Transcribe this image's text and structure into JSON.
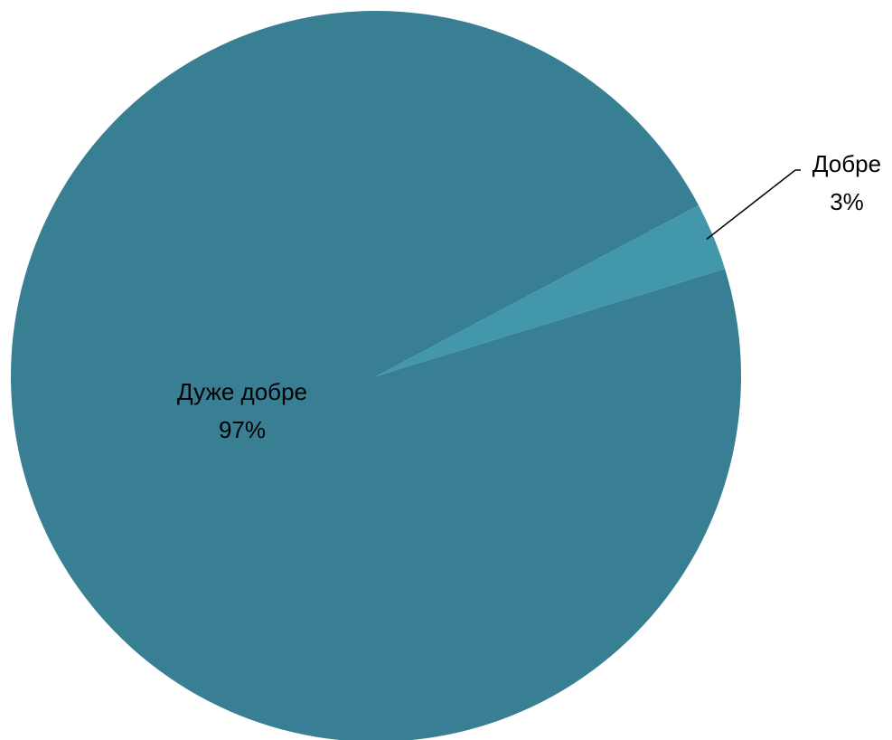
{
  "chart_data": {
    "type": "pie",
    "categories": [
      "Дуже добре",
      "Добре"
    ],
    "values": [
      97,
      3
    ],
    "value_labels": [
      "97%",
      "3%"
    ],
    "colors": [
      "#387f94",
      "#4297ab"
    ],
    "start_angle_deg": -28,
    "legend": "none",
    "title": ""
  }
}
